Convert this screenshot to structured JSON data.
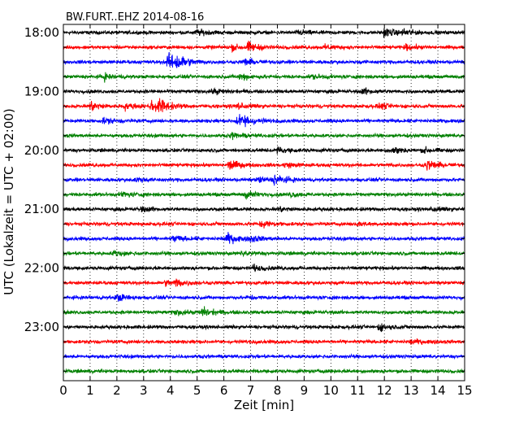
{
  "chart_data": {
    "type": "line",
    "title": "BW.FURT..EHZ 2014-08-16",
    "xlabel": "Zeit  [min]",
    "ylabel": "UTC (Lokalzeit = UTC + 02:00)",
    "xlim": [
      0,
      15
    ],
    "x_ticks": [
      0,
      1,
      2,
      3,
      4,
      5,
      6,
      7,
      8,
      9,
      10,
      11,
      12,
      13,
      14,
      15
    ],
    "grid": "vertical dotted",
    "colors": [
      "#000000",
      "#ff0000",
      "#0000ff",
      "#008000"
    ],
    "y_tick_labels": [
      "18:00",
      "19:00",
      "20:00",
      "21:00",
      "22:00",
      "23:00"
    ],
    "series": [
      {
        "start": "18:00",
        "color": "#000000",
        "amp": 0.3,
        "events": [
          [
            5.0,
            0.45
          ],
          [
            8.8,
            0.4
          ],
          [
            12.0,
            0.75
          ],
          [
            12.7,
            0.45
          ]
        ]
      },
      {
        "start": "18:15",
        "color": "#ff0000",
        "amp": 0.3,
        "events": [
          [
            6.9,
            0.75
          ],
          [
            6.3,
            0.45
          ],
          [
            9.8,
            0.4
          ],
          [
            12.8,
            0.4
          ]
        ]
      },
      {
        "start": "18:30",
        "color": "#0000ff",
        "amp": 0.3,
        "events": [
          [
            3.9,
            1.4
          ],
          [
            4.25,
            1.0
          ],
          [
            6.8,
            0.55
          ]
        ]
      },
      {
        "start": "18:45",
        "color": "#008000",
        "amp": 0.3,
        "events": [
          [
            1.5,
            0.55
          ],
          [
            6.6,
            0.6
          ],
          [
            9.3,
            0.35
          ]
        ]
      },
      {
        "start": "19:00",
        "color": "#000000",
        "amp": 0.3,
        "events": [
          [
            5.6,
            0.4
          ],
          [
            11.2,
            0.45
          ]
        ]
      },
      {
        "start": "19:15",
        "color": "#ff0000",
        "amp": 0.3,
        "events": [
          [
            1.0,
            0.8
          ],
          [
            2.3,
            0.5
          ],
          [
            3.3,
            0.95
          ],
          [
            3.6,
            0.8
          ],
          [
            6.5,
            0.55
          ],
          [
            11.8,
            0.45
          ]
        ]
      },
      {
        "start": "19:30",
        "color": "#0000ff",
        "amp": 0.3,
        "events": [
          [
            1.5,
            0.45
          ],
          [
            6.5,
            0.95
          ],
          [
            6.8,
            0.55
          ]
        ]
      },
      {
        "start": "19:45",
        "color": "#008000",
        "amp": 0.3,
        "events": [
          [
            6.3,
            0.45
          ]
        ]
      },
      {
        "start": "20:00",
        "color": "#000000",
        "amp": 0.3,
        "events": [
          [
            8.0,
            0.45
          ],
          [
            12.3,
            0.7
          ],
          [
            13.5,
            0.4
          ]
        ]
      },
      {
        "start": "20:15",
        "color": "#ff0000",
        "amp": 0.3,
        "events": [
          [
            6.2,
            0.85
          ],
          [
            8.3,
            0.4
          ],
          [
            13.6,
            0.85
          ]
        ]
      },
      {
        "start": "20:30",
        "color": "#0000ff",
        "amp": 0.3,
        "events": [
          [
            2.7,
            0.4
          ],
          [
            7.9,
            0.8
          ],
          [
            7.3,
            0.45
          ]
        ]
      },
      {
        "start": "20:45",
        "color": "#008000",
        "amp": 0.3,
        "events": [
          [
            2.2,
            0.45
          ],
          [
            6.8,
            0.6
          ],
          [
            8.5,
            0.35
          ]
        ]
      },
      {
        "start": "21:00",
        "color": "#000000",
        "amp": 0.3,
        "events": [
          [
            2.9,
            0.4
          ],
          [
            8.0,
            0.4
          ],
          [
            13.8,
            0.35
          ]
        ]
      },
      {
        "start": "21:15",
        "color": "#ff0000",
        "amp": 0.3,
        "events": [
          [
            7.4,
            0.55
          ],
          [
            10.9,
            0.35
          ]
        ]
      },
      {
        "start": "21:30",
        "color": "#0000ff",
        "amp": 0.3,
        "events": [
          [
            4.1,
            0.55
          ],
          [
            6.1,
            0.9
          ],
          [
            7.0,
            0.45
          ]
        ]
      },
      {
        "start": "21:45",
        "color": "#008000",
        "amp": 0.3,
        "events": [
          [
            1.9,
            0.45
          ],
          [
            6.7,
            0.35
          ]
        ]
      },
      {
        "start": "22:00",
        "color": "#000000",
        "amp": 0.3,
        "events": [
          [
            7.1,
            0.45
          ]
        ]
      },
      {
        "start": "22:15",
        "color": "#ff0000",
        "amp": 0.3,
        "events": [
          [
            4.2,
            0.6
          ],
          [
            3.8,
            0.4
          ]
        ]
      },
      {
        "start": "22:30",
        "color": "#0000ff",
        "amp": 0.3,
        "events": [
          [
            2.0,
            0.55
          ],
          [
            6.9,
            0.3
          ]
        ]
      },
      {
        "start": "22:45",
        "color": "#008000",
        "amp": 0.3,
        "events": [
          [
            5.2,
            0.8
          ],
          [
            4.2,
            0.4
          ]
        ]
      },
      {
        "start": "23:00",
        "color": "#000000",
        "amp": 0.3,
        "events": [
          [
            11.8,
            0.55
          ]
        ]
      },
      {
        "start": "23:15",
        "color": "#ff0000",
        "amp": 0.3,
        "events": [
          [
            13.0,
            0.4
          ]
        ]
      },
      {
        "start": "23:30",
        "color": "#0000ff",
        "amp": 0.3,
        "events": []
      },
      {
        "start": "23:45",
        "color": "#008000",
        "amp": 0.3,
        "events": []
      }
    ]
  }
}
